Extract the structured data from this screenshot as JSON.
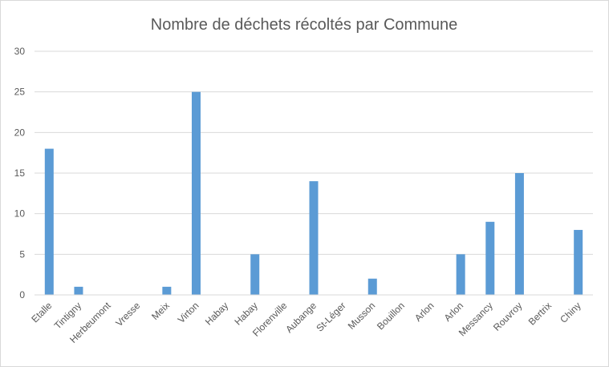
{
  "chart_data": {
    "type": "bar",
    "title": "Nombre de déchets récoltés par Commune",
    "xlabel": "",
    "ylabel": "",
    "categories": [
      "Etalle",
      "Tintigny",
      "Herbeumont",
      "Vresse",
      "Meix",
      "Virton",
      "Habay",
      "Habay",
      "Florenville",
      "Aubange",
      "St-Léger",
      "Musson",
      "Bouillon",
      "Arlon",
      "Arlon",
      "Messancy",
      "Rouvroy",
      "Bertrix",
      "Chiny"
    ],
    "values": [
      18,
      1,
      0,
      0,
      1,
      25,
      0,
      5,
      0,
      14,
      0,
      2,
      0,
      0,
      5,
      9,
      15,
      0,
      8
    ],
    "ylim": [
      0,
      30
    ],
    "yticks": [
      0,
      5,
      10,
      15,
      20,
      25,
      30
    ],
    "grid": true,
    "legend": "none",
    "colors": {
      "bar": "#5b9bd5",
      "grid": "#d9d9d9",
      "axis": "#d9d9d9",
      "text": "#595959"
    }
  }
}
